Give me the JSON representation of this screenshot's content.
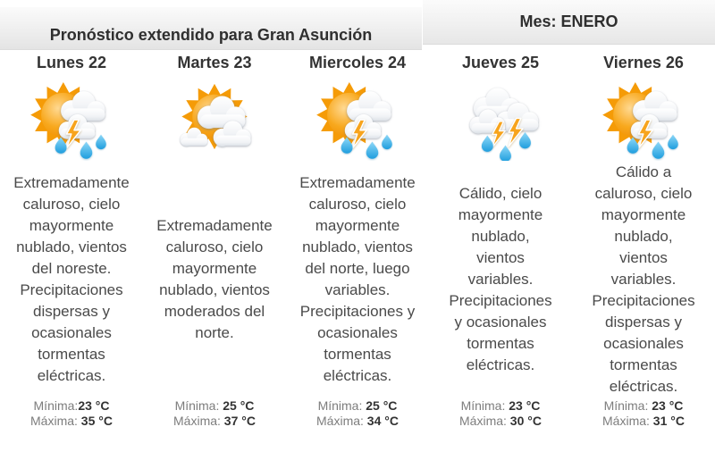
{
  "header": {
    "title": "Pronóstico extendido para Gran Asunción",
    "month_label": "Mes: ENERO"
  },
  "temps": {
    "min_label": "Mínima:",
    "max_label": "Máxima:"
  },
  "days": [
    {
      "label": "Lunes 22",
      "icon": "sun-cloud-lightning-rain",
      "description": "Extremadamente\ncaluroso, cielo\nmayormente\nnublado, vientos\ndel noreste.\nPrecipitaciones\ndispersas y\nocasionales\ntormentas\neléctricas.",
      "min": "23 °C",
      "max": " 35 °C"
    },
    {
      "label": "Martes 23",
      "icon": "sun-clouds",
      "description": "Extremadamente\ncaluroso, cielo\nmayormente\nnublado, vientos\nmoderados del\nnorte.",
      "min": " 25 °C",
      "max": " 37 °C"
    },
    {
      "label": "Miercoles 24",
      "icon": "sun-cloud-lightning-rain",
      "description": "Extremadamente\ncaluroso, cielo\nmayormente\nnublado, vientos\ndel norte, luego\nvariables.\nPrecipitaciones y\nocasionales\ntormentas\neléctricas.",
      "min": " 25 °C",
      "max": " 34 °C"
    },
    {
      "label": "Jueves 25",
      "icon": "clouds-lightning-rain",
      "description": "Cálido, cielo\nmayormente\nnublado,\nvientos\nvariables.\nPrecipitaciones\ny ocasionales\ntormentas\neléctricas.",
      "min": " 23 °C",
      "max": " 30 °C"
    },
    {
      "label": "Viernes 26",
      "icon": "sun-cloud-lightning-rain",
      "description": "Cálido a\ncaluroso, cielo\nmayormente\nnublado,\nvientos\nvariables.\nPrecipitaciones\ndispersas y\nocasionales\ntormentas\neléctricas.",
      "min": " 23 °C",
      "max": " 31 °C"
    }
  ]
}
